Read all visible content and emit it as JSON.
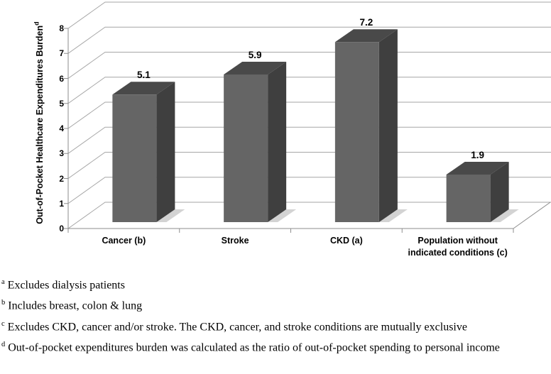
{
  "chart_data": {
    "type": "bar",
    "projection": "3d",
    "title": "",
    "categories": [
      "Cancer (b)",
      "Stroke",
      "CKD (a)",
      "Population without indicated conditions (c)"
    ],
    "values": [
      5.1,
      5.9,
      7.2,
      1.9
    ],
    "data_labels": [
      "5.1",
      "5.9",
      "7.2",
      "1.9"
    ],
    "ylabel": "Out-of-Pocket Healthcare Expenditures Burden",
    "ylabel_superscript": "d",
    "xlabel": "",
    "ylim": [
      0,
      8
    ],
    "yticks": [
      0,
      1,
      2,
      3,
      4,
      5,
      6,
      7,
      8
    ],
    "grid": true,
    "legend": false,
    "colors": {
      "bar_front": "#656565",
      "bar_top": "#494949",
      "bar_side": "#3f3f3f",
      "bar_shadow": "#b5b5b5",
      "gridline": "#a6a6a6",
      "axis": "#8e8e8e",
      "text": "#000000",
      "background": "#ffffff"
    }
  },
  "footnotes": [
    {
      "marker": "a",
      "text": "Excludes dialysis patients"
    },
    {
      "marker": "b",
      "text": "Includes breast, colon & lung"
    },
    {
      "marker": "c",
      "text": "Excludes CKD, cancer and/or stroke. The CKD, cancer, and stroke conditions are mutually exclusive"
    },
    {
      "marker": "d",
      "text": "Out-of-pocket expenditures burden was calculated as the ratio of out-of-pocket spending to personal income"
    }
  ]
}
